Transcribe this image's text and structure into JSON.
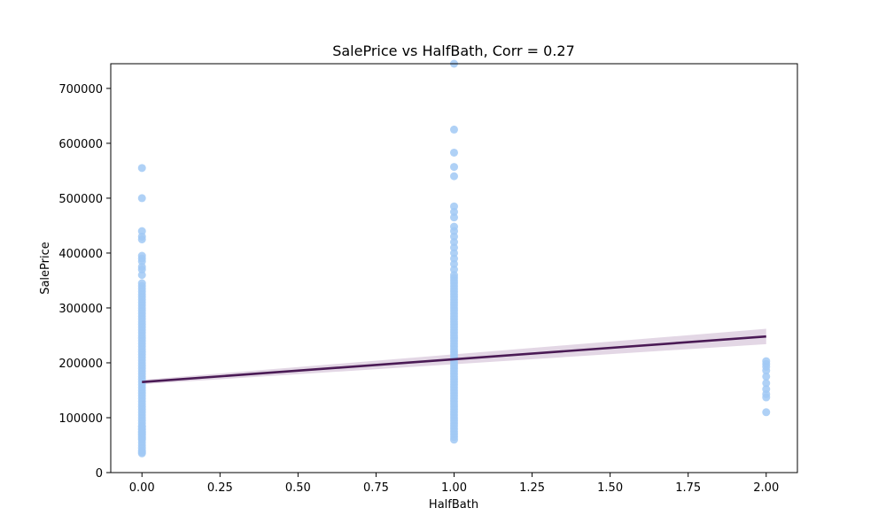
{
  "chart_data": {
    "type": "scatter",
    "title": "SalePrice vs HalfBath, Corr = 0.27",
    "xlabel": "HalfBath",
    "ylabel": "SalePrice",
    "xlim": [
      -0.1,
      2.1
    ],
    "ylim": [
      0,
      745000
    ],
    "xticks": [
      0.0,
      0.25,
      0.5,
      0.75,
      1.0,
      1.25,
      1.5,
      1.75,
      2.0
    ],
    "xtick_labels": [
      "0.00",
      "0.25",
      "0.50",
      "0.75",
      "1.00",
      "1.25",
      "1.50",
      "1.75",
      "2.00"
    ],
    "yticks": [
      0,
      100000,
      200000,
      300000,
      400000,
      500000,
      600000,
      700000
    ],
    "ytick_labels": [
      "0",
      "100000",
      "200000",
      "300000",
      "400000",
      "500000",
      "600000",
      "700000"
    ],
    "grid": false,
    "colors": {
      "points": "#a1c9f4",
      "regression_line": "#4a1a55",
      "confidence_band": "#d9c9dc"
    },
    "series": [
      {
        "x": [
          0,
          0,
          0,
          0,
          0,
          0,
          0,
          0,
          0,
          0,
          0,
          0,
          0,
          0,
          0,
          0,
          0,
          0,
          0,
          0,
          0,
          0,
          0,
          0,
          0,
          0,
          0,
          0,
          0,
          0,
          0,
          0,
          0,
          0,
          0,
          0,
          0,
          0,
          0,
          0,
          0,
          0,
          0,
          0,
          0,
          0,
          0,
          0,
          0,
          0,
          0,
          0,
          0,
          0,
          0,
          0,
          0,
          0,
          0,
          0,
          0,
          0,
          0,
          0,
          0,
          0,
          0,
          0,
          0,
          0,
          0,
          0,
          0,
          0,
          0,
          0,
          0,
          0,
          0,
          0,
          1,
          1,
          1,
          1,
          1,
          1,
          1,
          1,
          1,
          1,
          1,
          1,
          1,
          1,
          1,
          1,
          1,
          1,
          1,
          1,
          1,
          1,
          1,
          1,
          1,
          1,
          1,
          1,
          1,
          1,
          1,
          1,
          1,
          1,
          1,
          1,
          1,
          1,
          1,
          1,
          1,
          1,
          1,
          1,
          1,
          1,
          1,
          1,
          1,
          1,
          1,
          1,
          1,
          1,
          1,
          1,
          1,
          1,
          1,
          1,
          1,
          1,
          1,
          1,
          1,
          1,
          1,
          1,
          1,
          1,
          1,
          1,
          1,
          1,
          1,
          1,
          1,
          1,
          2,
          2,
          2,
          2,
          2,
          2,
          2,
          2,
          2,
          2
        ],
        "y": [
          555000,
          500000,
          440000,
          430000,
          425000,
          395000,
          390000,
          385000,
          375000,
          370000,
          360000,
          345000,
          340000,
          335000,
          330000,
          325000,
          320000,
          315000,
          310000,
          305000,
          300000,
          295000,
          290000,
          285000,
          280000,
          275000,
          270000,
          265000,
          260000,
          255000,
          250000,
          245000,
          240000,
          235000,
          230000,
          225000,
          220000,
          215000,
          210000,
          205000,
          200000,
          195000,
          190000,
          185000,
          180000,
          175000,
          170000,
          165000,
          160000,
          155000,
          150000,
          145000,
          140000,
          135000,
          130000,
          125000,
          120000,
          115000,
          110000,
          105000,
          100000,
          95000,
          90000,
          85000,
          80000,
          75000,
          70000,
          65000,
          60000,
          55000,
          50000,
          45000,
          40000,
          37000,
          35000,
          62000,
          68000,
          73000,
          78000,
          83000,
          745000,
          625000,
          583000,
          557000,
          540000,
          485000,
          475000,
          465000,
          448000,
          440000,
          430000,
          420000,
          410000,
          400000,
          390000,
          380000,
          370000,
          360000,
          350000,
          340000,
          330000,
          320000,
          310000,
          300000,
          290000,
          280000,
          270000,
          260000,
          250000,
          240000,
          230000,
          220000,
          210000,
          200000,
          190000,
          180000,
          170000,
          160000,
          150000,
          140000,
          130000,
          120000,
          110000,
          100000,
          90000,
          80000,
          70000,
          60000,
          275000,
          265000,
          255000,
          245000,
          235000,
          225000,
          215000,
          205000,
          195000,
          185000,
          175000,
          165000,
          155000,
          145000,
          135000,
          125000,
          115000,
          105000,
          95000,
          85000,
          75000,
          65000,
          355000,
          345000,
          335000,
          325000,
          315000,
          305000,
          295000,
          285000,
          203000,
          198000,
          193000,
          186000,
          175000,
          163000,
          152000,
          143000,
          137000,
          110000
        ]
      }
    ],
    "regression": {
      "x": [
        0,
        2
      ],
      "y": [
        165000,
        248000
      ],
      "ci_lower": [
        161000,
        234000
      ],
      "ci_upper": [
        169000,
        262000
      ]
    }
  }
}
